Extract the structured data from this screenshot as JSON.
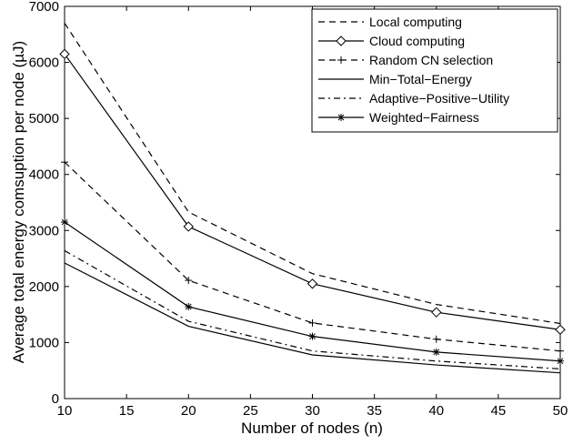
{
  "chart_data": {
    "type": "line",
    "title": "",
    "xlabel": "Number of nodes (n)",
    "ylabel": "Average total energy comsuption per node (µJ)",
    "xlim": [
      10,
      50
    ],
    "ylim": [
      0,
      7000
    ],
    "xticks": [
      10,
      15,
      20,
      25,
      30,
      35,
      40,
      45,
      50
    ],
    "yticks": [
      0,
      1000,
      2000,
      3000,
      4000,
      5000,
      6000,
      7000
    ],
    "grid": false,
    "legend_position": "top-right",
    "x": [
      10,
      20,
      30,
      40,
      50
    ],
    "series": [
      {
        "name": "Local computing",
        "values": [
          6700,
          3330,
          2230,
          1680,
          1340
        ],
        "line": "dashed",
        "marker": "none",
        "color": "#000000"
      },
      {
        "name": "Cloud computing",
        "values": [
          6150,
          3070,
          2050,
          1540,
          1230
        ],
        "line": "solid",
        "marker": "diamond",
        "color": "#000000"
      },
      {
        "name": "Random CN selection",
        "values": [
          4220,
          2110,
          1350,
          1060,
          850
        ],
        "line": "dashed",
        "marker": "plus",
        "color": "#000000"
      },
      {
        "name": "Min−Total−Energy",
        "values": [
          2420,
          1290,
          780,
          600,
          460
        ],
        "line": "solid",
        "marker": "none",
        "color": "#000000"
      },
      {
        "name": "Adaptive−Positive−Utility",
        "values": [
          2640,
          1380,
          850,
          670,
          530
        ],
        "line": "dashdot",
        "marker": "none",
        "color": "#000000"
      },
      {
        "name": "Weighted−Fairness",
        "values": [
          3150,
          1640,
          1110,
          830,
          670
        ],
        "line": "solid",
        "marker": "star",
        "color": "#000000"
      }
    ]
  }
}
